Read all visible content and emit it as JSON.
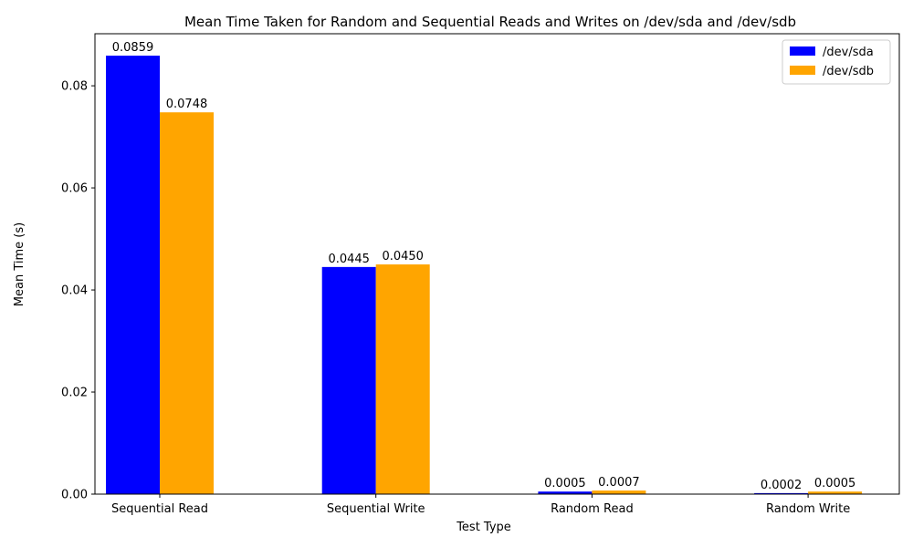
{
  "chart_data": {
    "type": "bar",
    "title": "Mean Time Taken for Random and Sequential Reads and Writes on /dev/sda and /dev/sdb",
    "xlabel": "Test Type",
    "ylabel": "Mean Time (s)",
    "categories": [
      "Sequential Read",
      "Sequential Write",
      "Random Read",
      "Random Write"
    ],
    "series": [
      {
        "name": "/dev/sda",
        "color": "#0000ff",
        "values": [
          0.0859,
          0.0445,
          0.0005,
          0.0002
        ],
        "labels": [
          "0.0859",
          "0.0445",
          "0.0005",
          "0.0002"
        ]
      },
      {
        "name": "/dev/sdb",
        "color": "#ffa500",
        "values": [
          0.0748,
          0.045,
          0.0007,
          0.0005
        ],
        "labels": [
          "0.0748",
          "0.0450",
          "0.0007",
          "0.0005"
        ]
      }
    ],
    "ylim": [
      0,
      0.0902
    ],
    "yticks": [
      0.0,
      0.02,
      0.04,
      0.06,
      0.08
    ],
    "ytick_labels": [
      "0.00",
      "0.02",
      "0.04",
      "0.06",
      "0.08"
    ],
    "grid": false,
    "legend_position": "top-right"
  }
}
